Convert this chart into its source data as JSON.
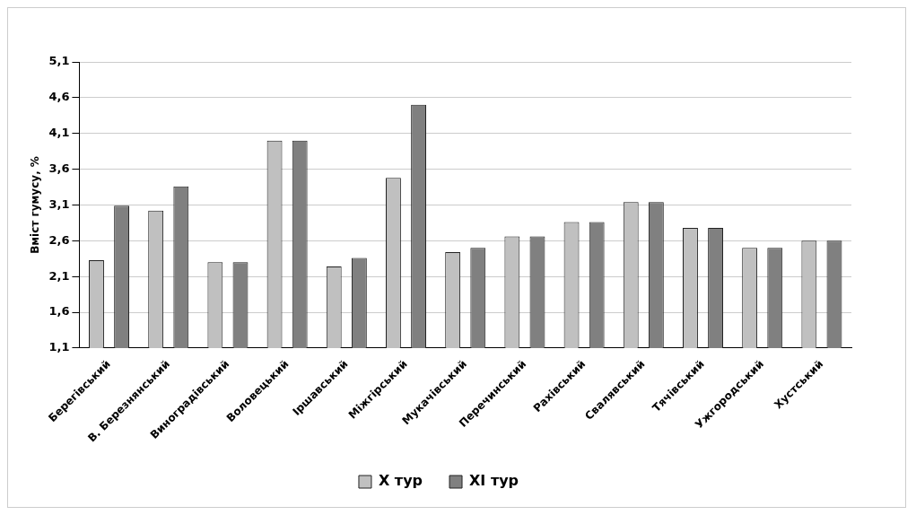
{
  "chart_data": {
    "type": "bar",
    "ylabel": "Вміст гумусу, %",
    "categories": [
      "Берегівський",
      "В. Березнянський",
      "Виноградівський",
      "Воловецький",
      "Іршавський",
      "Міжгірський",
      "Мукачівський",
      "Перечинський",
      "Рахівський",
      "Свалявський",
      "Тячівський",
      "Ужгородський",
      "Хустський"
    ],
    "series": [
      {
        "name": "X тур",
        "color": "#c0c0c0",
        "values": [
          2.33,
          3.02,
          2.3,
          4.0,
          2.24,
          3.48,
          2.44,
          2.66,
          2.86,
          3.14,
          2.78,
          2.5,
          2.6
        ]
      },
      {
        "name": "XI тур",
        "color": "#808080",
        "values": [
          3.09,
          3.36,
          2.3,
          4.0,
          2.36,
          4.5,
          2.5,
          2.66,
          2.86,
          3.14,
          2.78,
          2.5,
          2.6
        ]
      }
    ],
    "ylim": [
      1.1,
      5.1
    ],
    "yticks": [
      {
        "value": 1.1,
        "label": "1,1"
      },
      {
        "value": 1.6,
        "label": "1,6"
      },
      {
        "value": 2.1,
        "label": "2,1"
      },
      {
        "value": 2.6,
        "label": "2,6"
      },
      {
        "value": 3.1,
        "label": "3,1"
      },
      {
        "value": 3.6,
        "label": "3,6"
      },
      {
        "value": 4.1,
        "label": "4,1"
      },
      {
        "value": 4.6,
        "label": "4,6"
      },
      {
        "value": 5.1,
        "label": "5,1"
      }
    ],
    "grid": "y",
    "legend": "bottom"
  }
}
